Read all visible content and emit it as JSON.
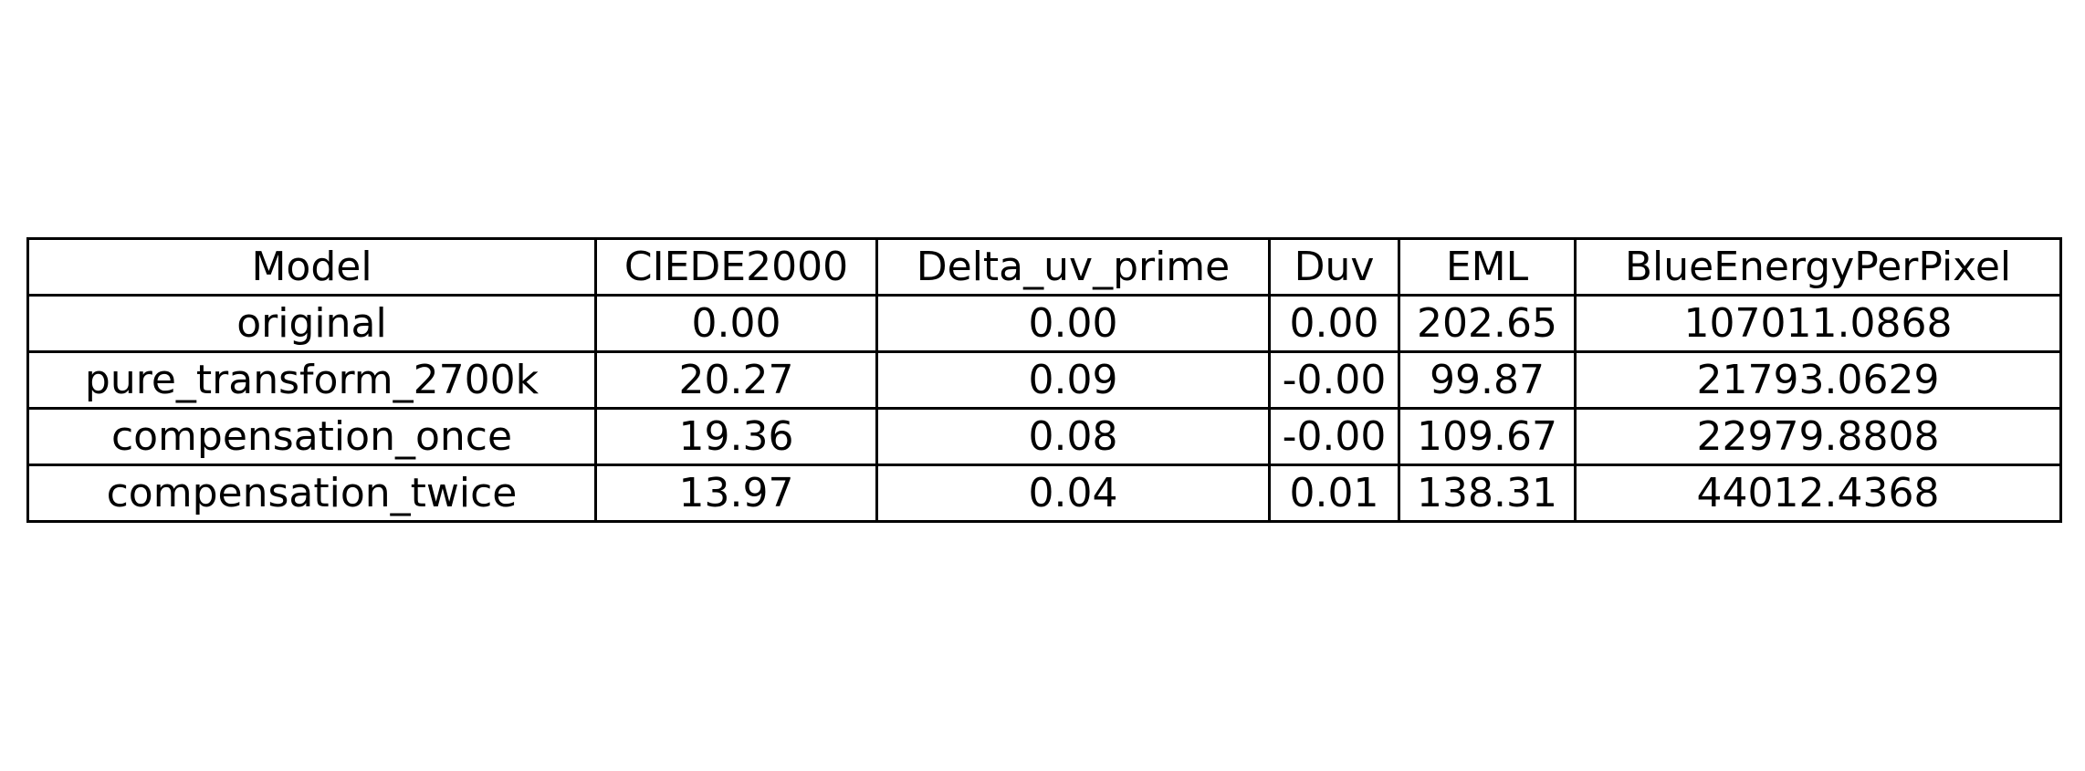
{
  "chart_data": {
    "type": "table",
    "columns": [
      "Model",
      "CIEDE2000",
      "Delta_uv_prime",
      "Duv",
      "EML",
      "BlueEnergyPerPixel"
    ],
    "rows": [
      [
        "original",
        "0.00",
        "0.00",
        "0.00",
        "202.65",
        "107011.0868"
      ],
      [
        "pure_transform_2700k",
        "20.27",
        "0.09",
        "-0.00",
        "99.87",
        "21793.0629"
      ],
      [
        "compensation_once",
        "19.36",
        "0.08",
        "-0.00",
        "109.67",
        "22979.8808"
      ],
      [
        "compensation_twice",
        "13.97",
        "0.04",
        "0.01",
        "138.31",
        "44012.4368"
      ]
    ]
  }
}
